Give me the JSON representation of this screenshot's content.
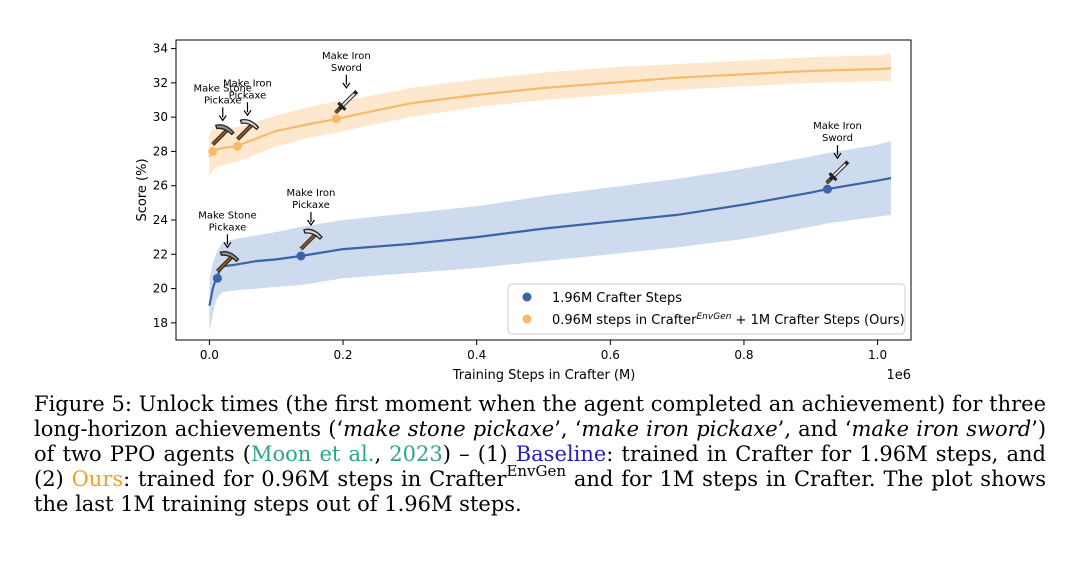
{
  "chart_data": {
    "type": "line",
    "xlabel": "Training Steps in Crafter (M)",
    "ylabel": "Score (%)",
    "x_offset_label": "1e6",
    "xlim": [
      -0.05,
      1.05
    ],
    "ylim": [
      17,
      34.5
    ],
    "xticks": [
      0.0,
      0.2,
      0.4,
      0.6,
      0.8,
      1.0
    ],
    "xtick_labels": [
      "0.0",
      "0.2",
      "0.4",
      "0.6",
      "0.8",
      "1.0"
    ],
    "yticks": [
      18,
      20,
      22,
      24,
      26,
      28,
      30,
      32,
      34
    ],
    "ytick_labels": [
      "18",
      "20",
      "22",
      "24",
      "26",
      "28",
      "30",
      "32",
      "34"
    ],
    "series": [
      {
        "name": "1.96M Crafter Steps",
        "color": "#3b63a8",
        "band_color": "#c6d4ea",
        "x": [
          0.0,
          0.005,
          0.01,
          0.015,
          0.02,
          0.04,
          0.07,
          0.1,
          0.137,
          0.2,
          0.3,
          0.4,
          0.5,
          0.6,
          0.7,
          0.8,
          0.9,
          0.925,
          1.0,
          1.02
        ],
        "y": [
          19.0,
          20.0,
          20.6,
          21.0,
          21.3,
          21.4,
          21.6,
          21.7,
          21.9,
          22.3,
          22.6,
          23.0,
          23.5,
          23.9,
          24.3,
          24.9,
          25.6,
          25.8,
          26.3,
          26.45
        ],
        "lower": [
          17.5,
          18.5,
          19.3,
          19.6,
          19.8,
          19.9,
          20.0,
          20.1,
          20.2,
          20.6,
          20.9,
          21.2,
          21.6,
          22.0,
          22.4,
          22.9,
          23.6,
          23.8,
          24.2,
          24.3
        ],
        "upper": [
          20.5,
          21.5,
          22.0,
          22.4,
          22.7,
          22.9,
          23.1,
          23.3,
          23.6,
          24.0,
          24.4,
          24.8,
          25.4,
          25.9,
          26.4,
          27.0,
          27.7,
          27.9,
          28.4,
          28.6
        ]
      },
      {
        "name": "0.96M steps in Crafter^EnvGen + 1M Crafter Steps (Ours)",
        "color": "#f6ba6c",
        "band_color": "#fde3c4",
        "x": [
          0.0,
          0.005,
          0.01,
          0.02,
          0.04,
          0.06,
          0.1,
          0.15,
          0.19,
          0.25,
          0.3,
          0.4,
          0.5,
          0.6,
          0.7,
          0.8,
          0.9,
          1.0,
          1.02
        ],
        "y": [
          27.7,
          28.0,
          28.1,
          28.2,
          28.3,
          28.6,
          29.2,
          29.6,
          29.9,
          30.4,
          30.8,
          31.3,
          31.7,
          32.0,
          32.3,
          32.5,
          32.7,
          32.8,
          32.85
        ],
        "lower": [
          26.5,
          26.9,
          27.1,
          27.2,
          27.4,
          27.7,
          28.3,
          28.8,
          29.1,
          29.6,
          30.0,
          30.6,
          31.0,
          31.3,
          31.6,
          31.8,
          32.0,
          32.1,
          32.1
        ],
        "upper": [
          29.0,
          29.3,
          29.3,
          29.4,
          29.4,
          29.6,
          30.1,
          30.6,
          30.9,
          31.3,
          31.7,
          32.2,
          32.6,
          32.9,
          33.1,
          33.3,
          33.5,
          33.6,
          33.7
        ]
      }
    ],
    "markers": [
      {
        "series": 0,
        "x": 0.012,
        "y": 20.6,
        "label": [
          "Make Stone",
          "Pickaxe"
        ],
        "icon": "pickaxe-stone"
      },
      {
        "series": 0,
        "x": 0.137,
        "y": 21.9,
        "label": [
          "Make Iron",
          "Pickaxe"
        ],
        "icon": "pickaxe-iron"
      },
      {
        "series": 0,
        "x": 0.925,
        "y": 25.8,
        "label": [
          "Make Iron",
          "Sword"
        ],
        "icon": "sword"
      },
      {
        "series": 1,
        "x": 0.005,
        "y": 28.0,
        "label": [
          "Make Stone",
          "Pickaxe"
        ],
        "icon": "pickaxe-stone"
      },
      {
        "series": 1,
        "x": 0.042,
        "y": 28.3,
        "label": [
          "Make Iron",
          "Pickaxe"
        ],
        "icon": "pickaxe-iron"
      },
      {
        "series": 1,
        "x": 0.19,
        "y": 29.9,
        "label": [
          "Make Iron",
          "Sword"
        ],
        "icon": "sword"
      }
    ],
    "legend": {
      "position": "lower-right",
      "entries": [
        {
          "label": "1.96M Crafter Steps",
          "color": "#3b63a8"
        },
        {
          "label_pre": "0.96M steps in Crafter",
          "label_sup": "EnvGen",
          "label_post": " + 1M Crafter Steps (Ours)",
          "color": "#f6ba6c"
        }
      ]
    }
  },
  "caption": {
    "p01": "Figure 5: Unlock times (the first moment when the agent completed an achievement) for three long-horizon achievements (‘",
    "p02": "make stone pickaxe",
    "p03": "’, ‘",
    "p04": "make iron pickaxe",
    "p05": "’, and ‘",
    "p06": "make iron sword",
    "p07": "’) of two PPO agents (",
    "p08": "Moon et al.",
    "p09": ", ",
    "p10": "2023",
    "p11": ") – (1) ",
    "p12": "Baseline",
    "p13": ": trained in Crafter for 1.96M steps, and (2) ",
    "p14": "Ours",
    "p15": ": trained for 0.96M steps in Crafter",
    "p16": "EnvGen",
    "p17": " and for 1M steps in Crafter. The plot shows the last 1M training steps out of 1.96M steps."
  }
}
